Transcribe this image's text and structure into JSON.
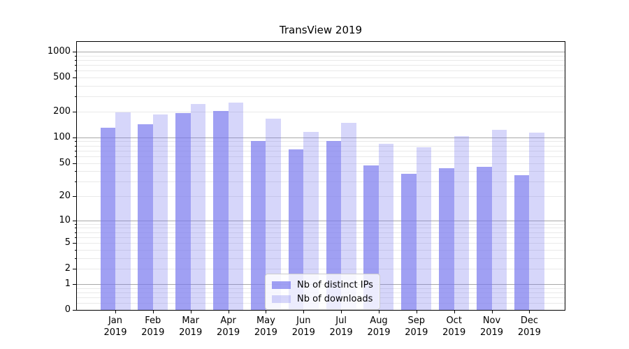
{
  "chart_data": {
    "type": "bar",
    "title": "TransView 2019",
    "categories": [
      {
        "month": "Jan",
        "year": "2019"
      },
      {
        "month": "Feb",
        "year": "2019"
      },
      {
        "month": "Mar",
        "year": "2019"
      },
      {
        "month": "Apr",
        "year": "2019"
      },
      {
        "month": "May",
        "year": "2019"
      },
      {
        "month": "Jun",
        "year": "2019"
      },
      {
        "month": "Jul",
        "year": "2019"
      },
      {
        "month": "Aug",
        "year": "2019"
      },
      {
        "month": "Sep",
        "year": "2019"
      },
      {
        "month": "Oct",
        "year": "2019"
      },
      {
        "month": "Nov",
        "year": "2019"
      },
      {
        "month": "Dec",
        "year": "2019"
      }
    ],
    "series": [
      {
        "key": "distinct-ips",
        "name": "Nb of distinct IPs",
        "color": "#7777ee",
        "alpha": 0.7,
        "values": [
          130,
          142,
          194,
          203,
          90,
          72,
          90,
          47,
          37,
          43,
          45,
          36
        ]
      },
      {
        "key": "downloads",
        "name": "Nb of downloads",
        "color": "#7777ee",
        "alpha": 0.3,
        "values": [
          198,
          186,
          244,
          254,
          167,
          117,
          147,
          85,
          77,
          103,
          122,
          113
        ]
      }
    ],
    "yscale": "log1p",
    "ylim": [
      0,
      1300
    ],
    "y_tick_values": [
      0,
      1,
      2,
      5,
      10,
      20,
      50,
      100,
      200,
      500,
      1000
    ],
    "y_tick_labels": [
      "0",
      "1",
      "2",
      "5",
      "10",
      "20",
      "50",
      "100",
      "200",
      "500",
      "1000"
    ],
    "grid": {
      "major_values": [
        1,
        10,
        100,
        1000
      ],
      "minor_sub_one": [
        0.2,
        0.4,
        0.6,
        0.8
      ],
      "major_color": "#a8a8a8",
      "minor_color": "#e9e9e9"
    },
    "legend": {
      "position": "lower-center"
    },
    "axis_color": "#000000",
    "background_color": "#ffffff"
  }
}
